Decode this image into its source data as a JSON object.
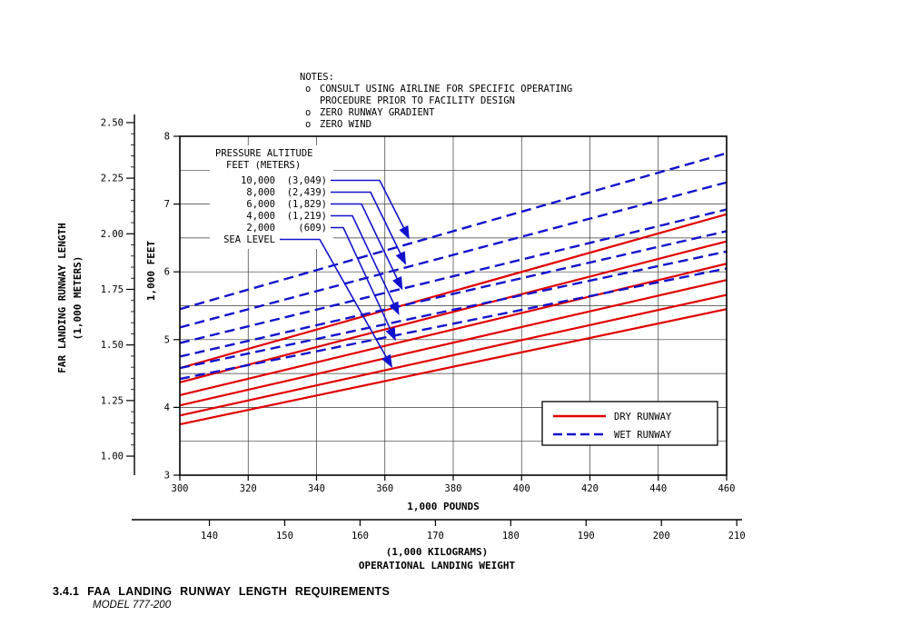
{
  "page": {
    "caption_number": "3.4.1",
    "caption_title": "FAA  LANDING  RUNWAY  LENGTH  REQUIREMENTS",
    "model_line": "MODEL  777-200"
  },
  "notes": {
    "title": "NOTES:",
    "rows": [
      {
        "bullet": "o",
        "text": "CONSULT USING AIRLINE FOR SPECIFIC OPERATING"
      },
      {
        "bullet": "",
        "text": "PROCEDURE PRIOR TO FACILITY DESIGN"
      },
      {
        "bullet": "o",
        "text": "ZERO RUNWAY GRADIENT"
      },
      {
        "bullet": "o",
        "text": "ZERO WIND"
      }
    ]
  },
  "chart_data": {
    "type": "line",
    "title": "FAA LANDING RUNWAY LENGTH REQUIREMENTS, MODEL 777-200",
    "grid": "on",
    "x_axis": {
      "label": "1,000 POUNDS",
      "min": 300,
      "max": 460,
      "ticks": [
        300,
        320,
        340,
        360,
        380,
        400,
        420,
        440,
        460
      ]
    },
    "x_axis_secondary": {
      "label_lines": [
        "(1,000 KILOGRAMS)",
        "OPERATIONAL LANDING WEIGHT"
      ],
      "ticks": [
        140,
        150,
        160,
        170,
        180,
        190,
        200,
        210
      ],
      "lb_per_kg": 2.20462
    },
    "y_axis_feet": {
      "label": "1,000 FEET",
      "min": 3,
      "max": 8,
      "ticks": [
        3,
        4,
        5,
        6,
        7,
        8
      ],
      "grid_step": 0.5
    },
    "y_axis_meters": {
      "label_lines": [
        "FAR LANDING RUNWAY LENGTH",
        "(1,000 METERS)"
      ],
      "tick_labels": [
        "1.00",
        "1.25",
        "1.50",
        "1.75",
        "2.00",
        "2.25",
        "2.50"
      ],
      "ticks": [
        1.0,
        1.25,
        1.5,
        1.75,
        2.0,
        2.25,
        2.5
      ],
      "ft_per_m": 3.28084
    },
    "legend": [
      {
        "label": "DRY RUNWAY",
        "style": "solid",
        "color": "#e00000"
      },
      {
        "label": "WET RUNWAY",
        "style": "dashed",
        "color": "#1212cc"
      }
    ],
    "pressure_altitude_key": {
      "title_lines": [
        "PRESSURE ALTITUDE",
        "FEET (METERS)"
      ],
      "entries": [
        {
          "feet": "10,000",
          "meters": "(3,049)",
          "target": [
            367,
            6.5
          ]
        },
        {
          "feet": "8,000",
          "meters": "(2,439)",
          "target": [
            366,
            6.12
          ]
        },
        {
          "feet": "6,000",
          "meters": "(1,829)",
          "target": [
            365,
            5.75
          ]
        },
        {
          "feet": "4,000",
          "meters": "(1,219)",
          "target": [
            364,
            5.38
          ]
        },
        {
          "feet": "2,000",
          "meters": "(609)",
          "target": [
            363,
            5.0
          ]
        },
        {
          "feet": "SEA LEVEL",
          "meters": "",
          "target": [
            362,
            4.6
          ]
        }
      ]
    },
    "series": [
      {
        "name": "DRY SEA LEVEL",
        "runway": "dry",
        "altitude_ft": 0,
        "x": [
          300,
          460
        ],
        "y_1000ft": [
          3.75,
          5.45
        ]
      },
      {
        "name": "DRY 2,000 FT",
        "runway": "dry",
        "altitude_ft": 2000,
        "x": [
          300,
          460
        ],
        "y_1000ft": [
          3.88,
          5.66
        ]
      },
      {
        "name": "DRY 4,000 FT",
        "runway": "dry",
        "altitude_ft": 4000,
        "x": [
          300,
          460
        ],
        "y_1000ft": [
          4.03,
          5.88
        ]
      },
      {
        "name": "DRY 6,000 FT",
        "runway": "dry",
        "altitude_ft": 6000,
        "x": [
          300,
          460
        ],
        "y_1000ft": [
          4.18,
          6.12
        ]
      },
      {
        "name": "DRY 8,000 FT",
        "runway": "dry",
        "altitude_ft": 8000,
        "x": [
          300,
          460
        ],
        "y_1000ft": [
          4.37,
          6.45
        ]
      },
      {
        "name": "DRY 10,000 FT",
        "runway": "dry",
        "altitude_ft": 10000,
        "x": [
          300,
          460
        ],
        "y_1000ft": [
          4.58,
          6.85
        ]
      },
      {
        "name": "WET SEA LEVEL",
        "runway": "wet",
        "altitude_ft": 0,
        "x": [
          300,
          460
        ],
        "y_1000ft": [
          4.42,
          6.05
        ]
      },
      {
        "name": "WET 2,000 FT",
        "runway": "wet",
        "altitude_ft": 2000,
        "x": [
          300,
          460
        ],
        "y_1000ft": [
          4.58,
          6.3
        ]
      },
      {
        "name": "WET 4,000 FT",
        "runway": "wet",
        "altitude_ft": 4000,
        "x": [
          300,
          460
        ],
        "y_1000ft": [
          4.75,
          6.6
        ]
      },
      {
        "name": "WET 6,000 FT",
        "runway": "wet",
        "altitude_ft": 6000,
        "x": [
          300,
          460
        ],
        "y_1000ft": [
          4.95,
          6.92
        ]
      },
      {
        "name": "WET 8,000 FT",
        "runway": "wet",
        "altitude_ft": 8000,
        "x": [
          300,
          460
        ],
        "y_1000ft": [
          5.18,
          7.32
        ]
      },
      {
        "name": "WET 10,000 FT",
        "runway": "wet",
        "altitude_ft": 10000,
        "x": [
          300,
          460
        ],
        "y_1000ft": [
          5.45,
          7.75
        ]
      }
    ],
    "colors": {
      "dry": "#e00000",
      "wet": "#1212cc",
      "grid": "#3a3a3a",
      "axis": "#000000"
    }
  }
}
